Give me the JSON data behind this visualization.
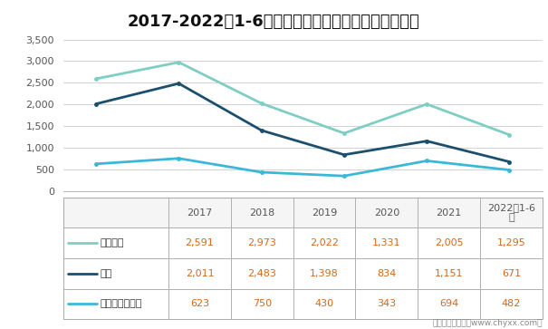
{
  "title": "2017-2022年1-6月日本机床内需分布情况（亿日元）",
  "categories": [
    "2017",
    "2018",
    "2019",
    "2020",
    "2021",
    "2022年1-6\n月"
  ],
  "series": [
    {
      "name": "普通器械",
      "values": [
        2591,
        2973,
        2022,
        1331,
        2005,
        1295
      ],
      "color": "#7ECEC4",
      "linewidth": 2.0
    },
    {
      "name": "汽车",
      "values": [
        2011,
        2483,
        1398,
        834,
        1151,
        671
      ],
      "color": "#1A4F6E",
      "linewidth": 2.0
    },
    {
      "name": "电器、精密机械",
      "values": [
        623,
        750,
        430,
        343,
        694,
        482
      ],
      "color": "#3BB8D8",
      "linewidth": 2.0
    }
  ],
  "ylim": [
    0,
    3500
  ],
  "yticks": [
    0,
    500,
    1000,
    1500,
    2000,
    2500,
    3000,
    3500
  ],
  "grid_color": "#CCCCCC",
  "footer_text": "制图：智研咨询（www.chyxx.com）",
  "title_fontsize": 13,
  "tick_fontsize": 8,
  "table_fontsize": 8,
  "background_color": "#FFFFFF",
  "table_border_color": "#AAAAAA",
  "table_header_bg": "#F5F5F5",
  "table_data_color": "#D2691E",
  "table_header_color": "#555555"
}
